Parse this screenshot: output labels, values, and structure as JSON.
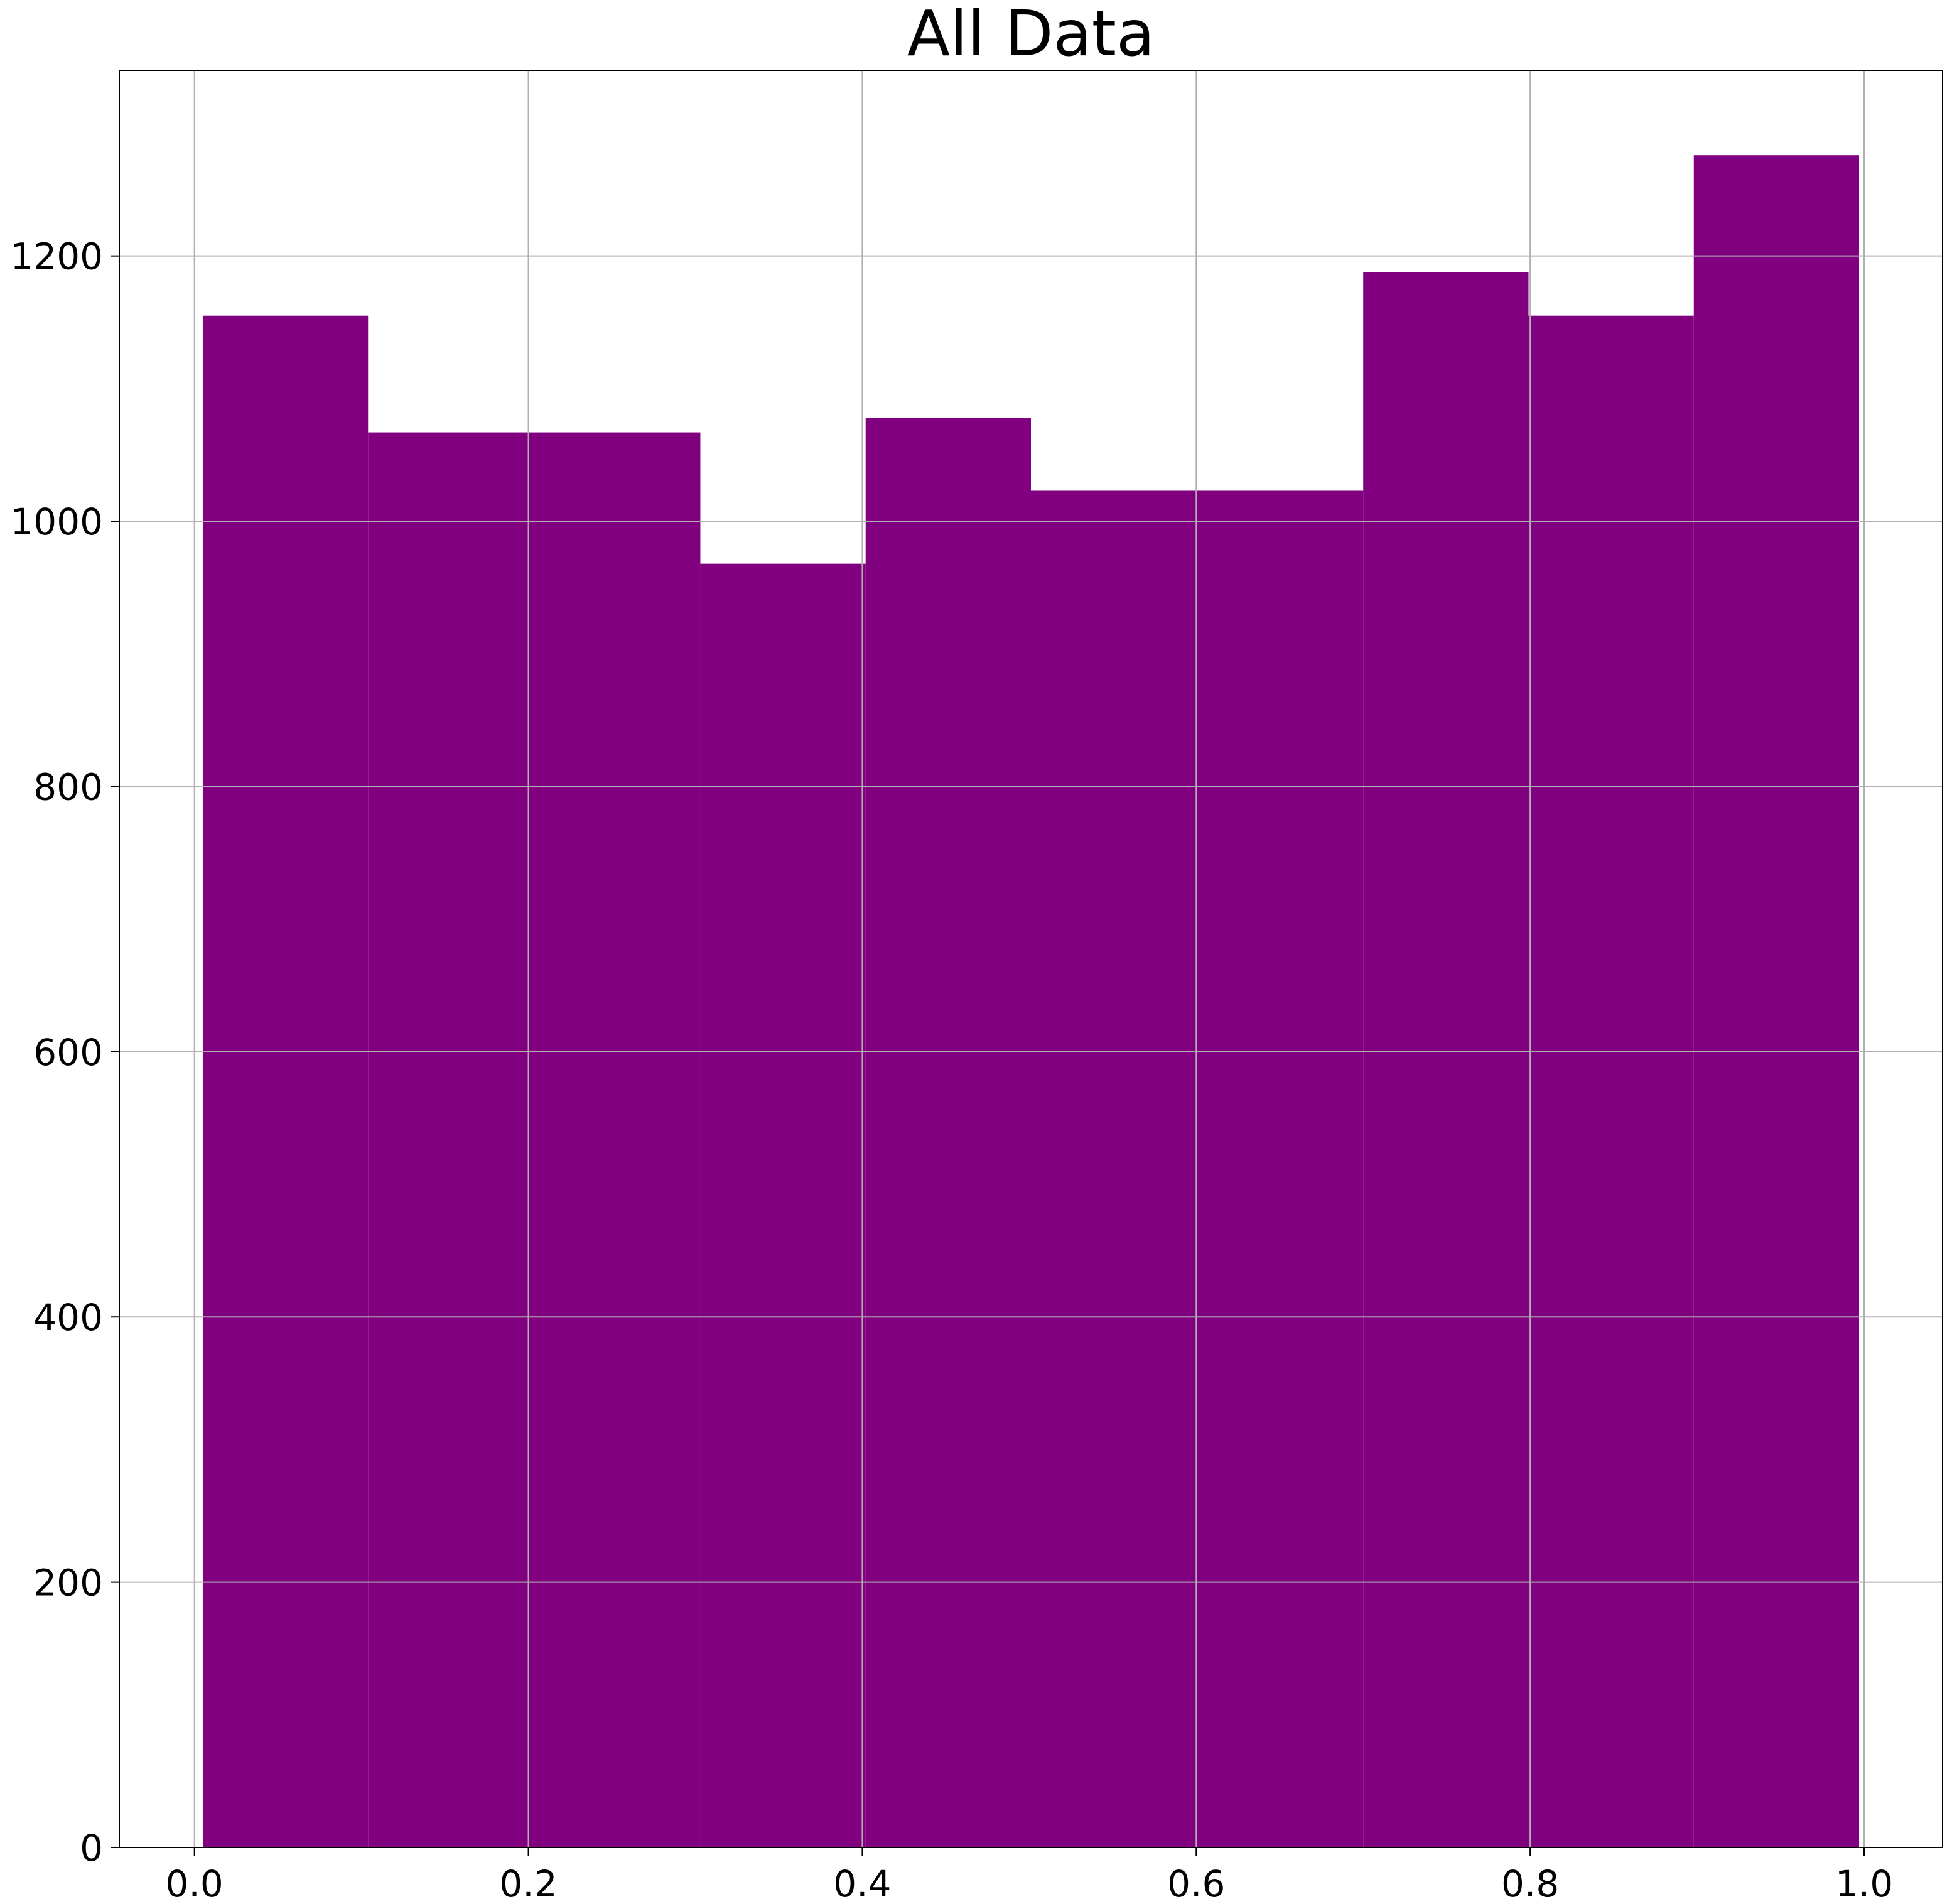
{
  "chart_data": {
    "type": "bar",
    "title": "All Data",
    "xlabel": "",
    "ylabel": "",
    "bins": [
      {
        "x0": 0.005,
        "x1": 0.104,
        "count": 1155
      },
      {
        "x0": 0.104,
        "x1": 0.203,
        "count": 1067
      },
      {
        "x0": 0.203,
        "x1": 0.303,
        "count": 1067
      },
      {
        "x0": 0.303,
        "x1": 0.402,
        "count": 968
      },
      {
        "x0": 0.402,
        "x1": 0.501,
        "count": 1078
      },
      {
        "x0": 0.501,
        "x1": 0.6,
        "count": 1023
      },
      {
        "x0": 0.6,
        "x1": 0.7,
        "count": 1023
      },
      {
        "x0": 0.7,
        "x1": 0.799,
        "count": 1188
      },
      {
        "x0": 0.799,
        "x1": 0.898,
        "count": 1155
      },
      {
        "x0": 0.898,
        "x1": 0.997,
        "count": 1276
      }
    ],
    "xlim": [
      -0.045,
      1.047
    ],
    "ylim": [
      0,
      1340
    ],
    "xticks": [
      "0.0",
      "0.2",
      "0.4",
      "0.6",
      "0.8",
      "1.0"
    ],
    "yticks": [
      "0",
      "200",
      "400",
      "600",
      "800",
      "1000",
      "1200"
    ],
    "grid": true,
    "bar_color": "#800080",
    "grid_color": "#b0b0b0"
  }
}
